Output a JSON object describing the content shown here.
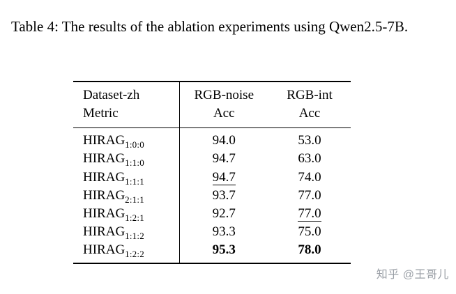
{
  "caption": "Table 4: The results of the ablation experiments using Qwen2.5-7B.",
  "table": {
    "columns": [
      {
        "lines": [
          "Dataset-zh",
          "Metric"
        ],
        "align": "left"
      },
      {
        "lines": [
          "RGB-noise",
          "Acc"
        ],
        "align": "center"
      },
      {
        "lines": [
          "RGB-int",
          "Acc"
        ],
        "align": "center"
      }
    ],
    "rows": [
      {
        "method": "HIRAG",
        "sub": "1:0:0",
        "cells": [
          {
            "v": "94.0",
            "style": "normal"
          },
          {
            "v": "53.0",
            "style": "normal"
          }
        ]
      },
      {
        "method": "HIRAG",
        "sub": "1:1:0",
        "cells": [
          {
            "v": "94.7",
            "style": "normal"
          },
          {
            "v": "63.0",
            "style": "normal"
          }
        ]
      },
      {
        "method": "HIRAG",
        "sub": "1:1:1",
        "cells": [
          {
            "v": "94.7",
            "style": "underline"
          },
          {
            "v": "74.0",
            "style": "normal"
          }
        ]
      },
      {
        "method": "HIRAG",
        "sub": "2:1:1",
        "cells": [
          {
            "v": "93.7",
            "style": "normal"
          },
          {
            "v": "77.0",
            "style": "normal"
          }
        ]
      },
      {
        "method": "HIRAG",
        "sub": "1:2:1",
        "cells": [
          {
            "v": "92.7",
            "style": "normal"
          },
          {
            "v": "77.0",
            "style": "underline"
          }
        ]
      },
      {
        "method": "HIRAG",
        "sub": "1:1:2",
        "cells": [
          {
            "v": "93.3",
            "style": "normal"
          },
          {
            "v": "75.0",
            "style": "normal"
          }
        ]
      },
      {
        "method": "HIRAG",
        "sub": "1:2:2",
        "cells": [
          {
            "v": "95.3",
            "style": "bold"
          },
          {
            "v": "78.0",
            "style": "bold"
          }
        ]
      }
    ]
  },
  "watermark": {
    "text": "知乎 @王哥儿",
    "color": "#9a9fa6"
  }
}
